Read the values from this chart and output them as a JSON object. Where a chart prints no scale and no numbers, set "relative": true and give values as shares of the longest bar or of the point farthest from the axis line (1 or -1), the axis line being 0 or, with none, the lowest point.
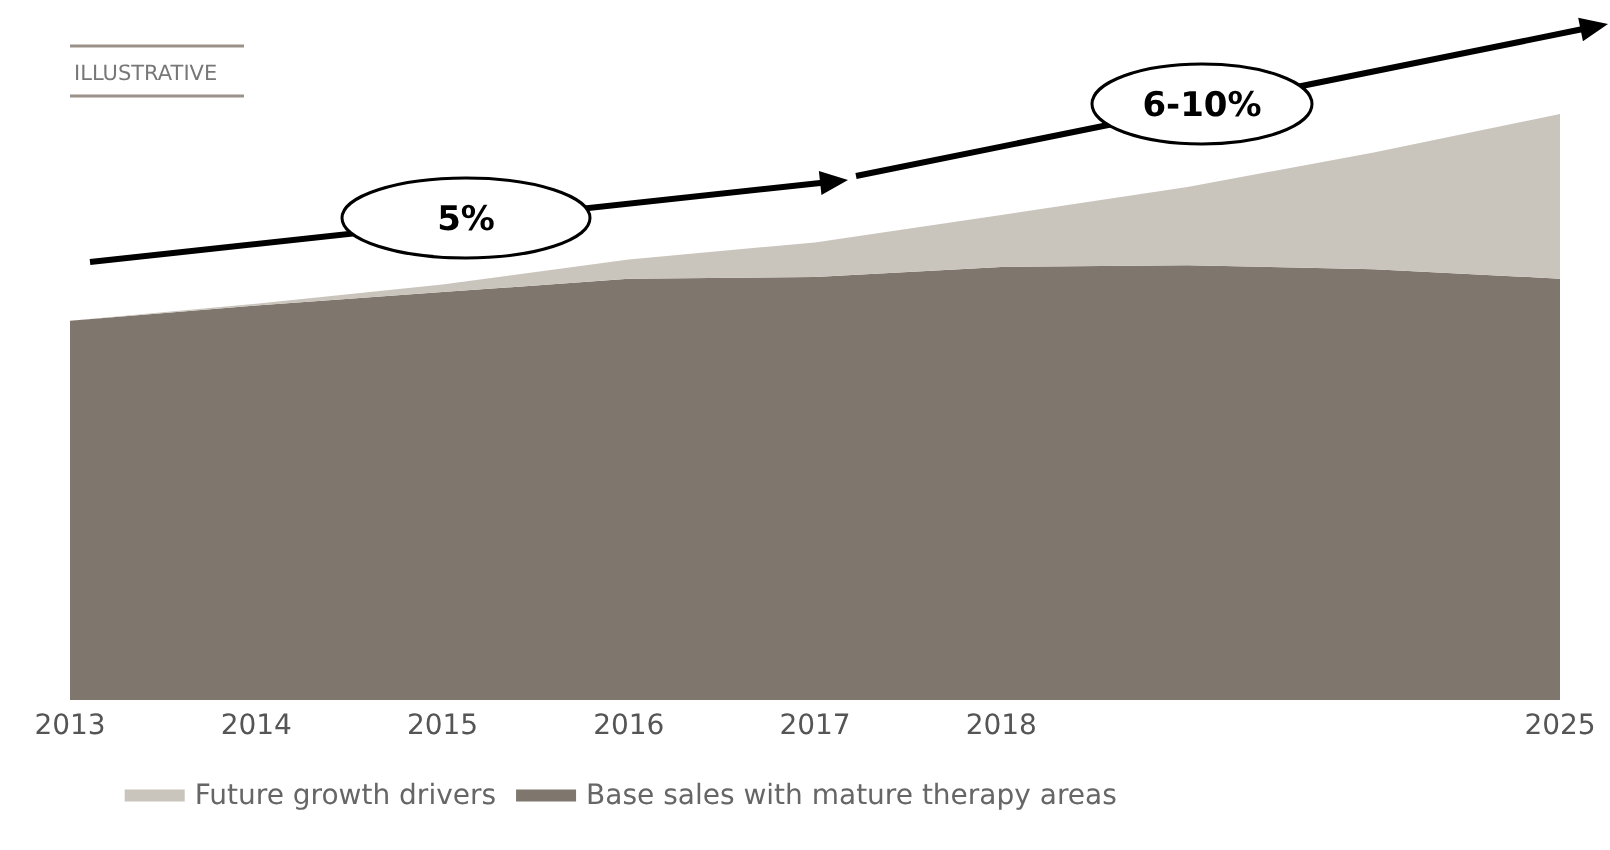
{
  "chart_data": {
    "type": "area",
    "relative": true,
    "stacked": true,
    "grid": false,
    "legend": "bottom",
    "categories": [
      "2013",
      "2014",
      "2015",
      "2016",
      "2017",
      "2018",
      null,
      null,
      "2025"
    ],
    "series": [
      {
        "name": "Base sales with mature therapy areas",
        "color": "#7f766d",
        "values": [
          0.646,
          0.672,
          0.695,
          0.718,
          0.721,
          0.738,
          0.741,
          0.734,
          0.718
        ]
      },
      {
        "name": "Future growth drivers",
        "color": "#c9c4bc",
        "values": [
          0,
          0.003,
          0.013,
          0.033,
          0.059,
          0.089,
          0.134,
          0.2,
          0.282
        ]
      }
    ],
    "annotations": [
      "ILLUSTRATIVE",
      "5%",
      "6-10%"
    ]
  }
}
